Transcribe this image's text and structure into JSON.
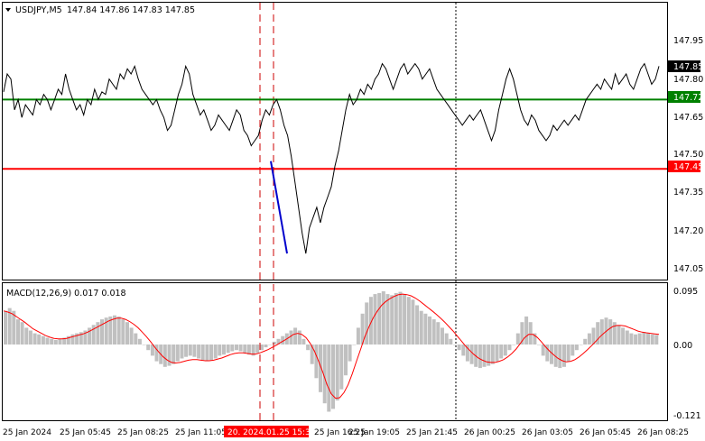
{
  "header": {
    "symbol_label": "USDJPY,M5",
    "ohlc_label": "147.84 147.86 147.83 147.85"
  },
  "price_axis": {
    "ticks": [
      "147.95",
      "147.80",
      "147.65",
      "147.50",
      "147.35",
      "147.20",
      "147.05"
    ],
    "current_label": "147.85",
    "level_green_label": "147.72",
    "level_red_label": "147.45"
  },
  "macd": {
    "label": "MACD(12,26,9) 0.017 0.018",
    "ticks": [
      "0.095",
      "0.00",
      "-0.121"
    ]
  },
  "time_axis": {
    "labels": [
      "25 Jan 2024",
      "25 Jan 05:45",
      "25 Jan 08:25",
      "25 Jan 11:05",
      "25 Jan 16:25",
      "25 Jan 19:05",
      "25 Jan 21:45",
      "26 Jan 00:25",
      "26 Jan 03:05",
      "26 Jan 05:45",
      "26 Jan 08:25"
    ],
    "cursor_label": "20. 2024.01.25 15:35"
  },
  "colors": {
    "price_line": "#000000",
    "level_green": "#008000",
    "level_red": "#ff0000",
    "trend_line": "#0000cc",
    "macd_hist": "#c0c0c0",
    "macd_signal": "#ff0000"
  },
  "chart_data": {
    "type": "line",
    "title": "USDJPY,M5",
    "price": [
      147.75,
      147.82,
      147.8,
      147.68,
      147.72,
      147.65,
      147.7,
      147.68,
      147.66,
      147.72,
      147.7,
      147.74,
      147.72,
      147.68,
      147.72,
      147.76,
      147.74,
      147.82,
      147.76,
      147.72,
      147.68,
      147.7,
      147.66,
      147.72,
      147.7,
      147.76,
      147.72,
      147.75,
      147.74,
      147.8,
      147.78,
      147.76,
      147.82,
      147.8,
      147.84,
      147.82,
      147.85,
      147.8,
      147.76,
      147.74,
      147.72,
      147.7,
      147.72,
      147.68,
      147.65,
      147.6,
      147.62,
      147.68,
      147.74,
      147.78,
      147.85,
      147.82,
      147.74,
      147.7,
      147.66,
      147.68,
      147.64,
      147.6,
      147.62,
      147.66,
      147.64,
      147.62,
      147.6,
      147.64,
      147.68,
      147.66,
      147.6,
      147.58,
      147.54,
      147.56,
      147.58,
      147.64,
      147.68,
      147.66,
      147.7,
      147.72,
      147.68,
      147.62,
      147.58,
      147.5,
      147.4,
      147.3,
      147.2,
      147.12,
      147.22,
      147.26,
      147.3,
      147.24,
      147.3,
      147.34,
      147.38,
      147.46,
      147.52,
      147.6,
      147.68,
      147.74,
      147.7,
      147.72,
      147.76,
      147.74,
      147.78,
      147.76,
      147.8,
      147.82,
      147.86,
      147.84,
      147.8,
      147.76,
      147.8,
      147.84,
      147.86,
      147.82,
      147.84,
      147.86,
      147.84,
      147.8,
      147.82,
      147.84,
      147.8,
      147.76,
      147.74,
      147.72,
      147.7,
      147.68,
      147.66,
      147.64,
      147.62,
      147.64,
      147.66,
      147.64,
      147.66,
      147.68,
      147.64,
      147.6,
      147.56,
      147.6,
      147.68,
      147.74,
      147.8,
      147.84,
      147.8,
      147.74,
      147.68,
      147.64,
      147.62,
      147.66,
      147.64,
      147.6,
      147.58,
      147.56,
      147.58,
      147.62,
      147.6,
      147.62,
      147.64,
      147.62,
      147.64,
      147.66,
      147.64,
      147.68,
      147.72,
      147.74,
      147.76,
      147.78,
      147.76,
      147.8,
      147.78,
      147.76,
      147.82,
      147.78,
      147.8,
      147.82,
      147.78,
      147.76,
      147.8,
      147.84,
      147.86,
      147.82,
      147.78,
      147.8,
      147.85
    ],
    "trend_line": [
      [
        147.48,
        147.12
      ]
    ],
    "levels": [
      147.72,
      147.45
    ],
    "ylim": [
      147.0,
      148.05
    ],
    "macd_hist": [
      0.06,
      0.065,
      0.06,
      0.045,
      0.04,
      0.03,
      0.025,
      0.02,
      0.018,
      0.015,
      0.012,
      0.01,
      0.008,
      0.01,
      0.012,
      0.015,
      0.018,
      0.02,
      0.022,
      0.025,
      0.03,
      0.035,
      0.04,
      0.045,
      0.048,
      0.05,
      0.052,
      0.05,
      0.045,
      0.04,
      0.03,
      0.02,
      0.01,
      0.0,
      -0.01,
      -0.02,
      -0.03,
      -0.035,
      -0.04,
      -0.038,
      -0.035,
      -0.03,
      -0.025,
      -0.022,
      -0.02,
      -0.022,
      -0.025,
      -0.028,
      -0.03,
      -0.028,
      -0.025,
      -0.02,
      -0.018,
      -0.015,
      -0.012,
      -0.01,
      -0.012,
      -0.015,
      -0.018,
      -0.02,
      -0.015,
      -0.01,
      -0.005,
      0.0,
      0.005,
      0.01,
      0.015,
      0.02,
      0.025,
      0.03,
      0.025,
      0.01,
      -0.01,
      -0.035,
      -0.06,
      -0.085,
      -0.105,
      -0.12,
      -0.115,
      -0.1,
      -0.08,
      -0.055,
      -0.03,
      0.0,
      0.03,
      0.055,
      0.075,
      0.085,
      0.09,
      0.092,
      0.095,
      0.09,
      0.088,
      0.092,
      0.094,
      0.09,
      0.085,
      0.08,
      0.07,
      0.06,
      0.055,
      0.05,
      0.045,
      0.04,
      0.03,
      0.02,
      0.01,
      0.0,
      -0.01,
      -0.02,
      -0.03,
      -0.035,
      -0.04,
      -0.042,
      -0.04,
      -0.038,
      -0.035,
      -0.03,
      -0.025,
      -0.02,
      -0.01,
      0.0,
      0.02,
      0.04,
      0.05,
      0.04,
      0.02,
      0.0,
      -0.02,
      -0.03,
      -0.035,
      -0.04,
      -0.042,
      -0.04,
      -0.03,
      -0.02,
      -0.01,
      0.0,
      0.01,
      0.02,
      0.03,
      0.04,
      0.045,
      0.048,
      0.045,
      0.04,
      0.035,
      0.03,
      0.025,
      0.02,
      0.018,
      0.02,
      0.022,
      0.02,
      0.018,
      0.017
    ],
    "macd_signal": [
      0.06,
      0.058,
      0.055,
      0.05,
      0.045,
      0.04,
      0.034,
      0.028,
      0.024,
      0.02,
      0.016,
      0.013,
      0.011,
      0.01,
      0.01,
      0.011,
      0.013,
      0.015,
      0.017,
      0.019,
      0.022,
      0.026,
      0.03,
      0.034,
      0.038,
      0.042,
      0.045,
      0.047,
      0.047,
      0.045,
      0.041,
      0.036,
      0.03,
      0.022,
      0.014,
      0.005,
      -0.005,
      -0.014,
      -0.022,
      -0.028,
      -0.032,
      -0.033,
      -0.032,
      -0.03,
      -0.028,
      -0.027,
      -0.027,
      -0.028,
      -0.029,
      -0.029,
      -0.028,
      -0.026,
      -0.024,
      -0.021,
      -0.018,
      -0.016,
      -0.015,
      -0.015,
      -0.016,
      -0.017,
      -0.017,
      -0.015,
      -0.012,
      -0.009,
      -0.005,
      -0.001,
      0.004,
      0.008,
      0.013,
      0.018,
      0.02,
      0.018,
      0.012,
      0.002,
      -0.012,
      -0.03,
      -0.05,
      -0.072,
      -0.088,
      -0.096,
      -0.095,
      -0.086,
      -0.072,
      -0.052,
      -0.03,
      -0.008,
      0.014,
      0.032,
      0.048,
      0.06,
      0.07,
      0.077,
      0.082,
      0.086,
      0.089,
      0.09,
      0.089,
      0.087,
      0.083,
      0.078,
      0.072,
      0.066,
      0.06,
      0.054,
      0.047,
      0.04,
      0.032,
      0.024,
      0.015,
      0.006,
      -0.003,
      -0.011,
      -0.018,
      -0.024,
      -0.028,
      -0.031,
      -0.032,
      -0.032,
      -0.03,
      -0.027,
      -0.022,
      -0.016,
      -0.008,
      0.002,
      0.012,
      0.018,
      0.018,
      0.013,
      0.005,
      -0.004,
      -0.012,
      -0.019,
      -0.025,
      -0.029,
      -0.031,
      -0.03,
      -0.027,
      -0.022,
      -0.016,
      -0.009,
      -0.002,
      0.006,
      0.014,
      0.021,
      0.027,
      0.032,
      0.034,
      0.034,
      0.033,
      0.03,
      0.027,
      0.024,
      0.022,
      0.021,
      0.02,
      0.019,
      0.018
    ],
    "macd_ylim": [
      -0.121,
      0.095
    ]
  }
}
